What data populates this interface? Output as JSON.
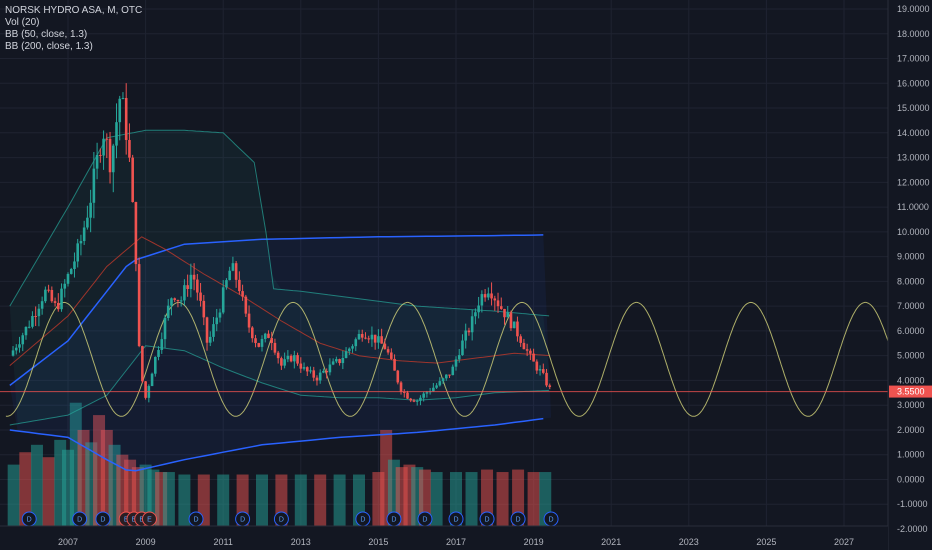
{
  "legend": {
    "symbol_line": "NORSK HYDRO ASA, M, OTC",
    "vol_line": "Vol (20)",
    "bb1_line": "BB (50, close, 1.3)",
    "bb2_line": "BB (200, close, 1.3)"
  },
  "chart_data": {
    "type": "candlestick",
    "symbol": "NORSK HYDRO ASA",
    "interval": "M",
    "exchange": "OTC",
    "current_price_label": "3.5500",
    "colors": {
      "background": "#131722",
      "up": "#26a69a",
      "down": "#ef5350",
      "bb50_mid": "#c0392b",
      "bb50_band": "#26a69a",
      "bb200_band": "#2962ff",
      "sine": "#d4d47a",
      "price_line": "#ef5350"
    },
    "y_axis": {
      "min": -2,
      "max": 19,
      "tick_labels": [
        "19.0000",
        "18.0000",
        "17.0000",
        "16.0000",
        "15.0000",
        "14.0000",
        "13.0000",
        "12.0000",
        "11.0000",
        "10.0000",
        "9.0000",
        "8.0000",
        "7.0000",
        "6.0000",
        "5.0000",
        "4.0000",
        "3.0000",
        "2.0000",
        "1.0000",
        "0.0000",
        "-1.0000",
        "-2.0000"
      ]
    },
    "x_axis": {
      "tick_labels": [
        "2007",
        "2009",
        "2011",
        "2013",
        "2015",
        "2017",
        "2019",
        "2021",
        "2023",
        "2025",
        "2027"
      ],
      "tick_years": [
        2007,
        2009,
        2011,
        2013,
        2015,
        2017,
        2019,
        2021,
        2023,
        2025,
        2027
      ]
    },
    "price_path": [
      [
        2005.5,
        5.0
      ],
      [
        2006.0,
        6.3
      ],
      [
        2006.4,
        7.6
      ],
      [
        2006.7,
        6.9
      ],
      [
        2007.0,
        8.2
      ],
      [
        2007.3,
        9.4
      ],
      [
        2007.6,
        11.5
      ],
      [
        2007.9,
        14.2
      ],
      [
        2008.1,
        12.8
      ],
      [
        2008.35,
        15.6
      ],
      [
        2008.55,
        13.6
      ],
      [
        2008.75,
        9.0
      ],
      [
        2008.85,
        4.5
      ],
      [
        2009.0,
        3.3
      ],
      [
        2009.15,
        4.3
      ],
      [
        2009.4,
        5.8
      ],
      [
        2009.7,
        7.6
      ],
      [
        2009.9,
        7.2
      ],
      [
        2010.2,
        8.4
      ],
      [
        2010.4,
        7.2
      ],
      [
        2010.6,
        5.4
      ],
      [
        2010.9,
        6.9
      ],
      [
        2011.2,
        8.6
      ],
      [
        2011.4,
        7.9
      ],
      [
        2011.6,
        6.4
      ],
      [
        2011.9,
        5.4
      ],
      [
        2012.2,
        5.9
      ],
      [
        2012.5,
        4.6
      ],
      [
        2012.8,
        5.0
      ],
      [
        2013.1,
        4.4
      ],
      [
        2013.4,
        4.1
      ],
      [
        2013.7,
        4.5
      ],
      [
        2014.0,
        4.8
      ],
      [
        2014.3,
        5.4
      ],
      [
        2014.6,
        6.0
      ],
      [
        2014.9,
        5.7
      ],
      [
        2015.2,
        5.3
      ],
      [
        2015.4,
        4.4
      ],
      [
        2015.6,
        3.6
      ],
      [
        2015.8,
        3.3
      ],
      [
        2016.0,
        3.2
      ],
      [
        2016.3,
        3.6
      ],
      [
        2016.6,
        3.9
      ],
      [
        2016.9,
        4.4
      ],
      [
        2017.1,
        5.3
      ],
      [
        2017.4,
        6.3
      ],
      [
        2017.6,
        7.3
      ],
      [
        2017.85,
        7.8
      ],
      [
        2018.1,
        7.1
      ],
      [
        2018.4,
        6.4
      ],
      [
        2018.7,
        5.6
      ],
      [
        2018.95,
        4.8
      ],
      [
        2019.2,
        4.3
      ],
      [
        2019.45,
        3.55
      ]
    ],
    "bb200": {
      "upper": [
        [
          2005.5,
          3.8
        ],
        [
          2007.0,
          5.6
        ],
        [
          2008.6,
          8.8
        ],
        [
          2010.0,
          9.5
        ],
        [
          2012.0,
          9.7
        ],
        [
          2015.0,
          9.8
        ],
        [
          2018.0,
          9.85
        ],
        [
          2019.45,
          9.88
        ]
      ],
      "lower": [
        [
          2005.5,
          2.0
        ],
        [
          2007.0,
          1.7
        ],
        [
          2008.0,
          0.8
        ],
        [
          2008.6,
          0.3
        ],
        [
          2010.0,
          0.8
        ],
        [
          2012.0,
          1.4
        ],
        [
          2014.0,
          1.7
        ],
        [
          2016.0,
          1.9
        ],
        [
          2018.0,
          2.2
        ],
        [
          2019.45,
          2.5
        ]
      ]
    },
    "bb50": {
      "upper": [
        [
          2005.5,
          7.0
        ],
        [
          2007.0,
          11.0
        ],
        [
          2008.0,
          13.8
        ],
        [
          2009.0,
          14.1
        ],
        [
          2010.0,
          14.1
        ],
        [
          2011.0,
          14.0
        ],
        [
          2011.8,
          12.8
        ],
        [
          2012.1,
          10.0
        ],
        [
          2012.3,
          7.7
        ],
        [
          2013.0,
          7.6
        ],
        [
          2014.0,
          7.4
        ],
        [
          2015.0,
          7.2
        ],
        [
          2016.0,
          7.0
        ],
        [
          2017.0,
          6.9
        ],
        [
          2018.0,
          6.8
        ],
        [
          2019.45,
          6.6
        ]
      ],
      "mid": [
        [
          2005.5,
          4.6
        ],
        [
          2007.0,
          6.6
        ],
        [
          2008.0,
          8.6
        ],
        [
          2008.9,
          9.8
        ],
        [
          2009.5,
          9.3
        ],
        [
          2010.5,
          8.3
        ],
        [
          2011.5,
          7.4
        ],
        [
          2012.5,
          6.4
        ],
        [
          2013.5,
          5.5
        ],
        [
          2014.5,
          5.0
        ],
        [
          2015.5,
          4.8
        ],
        [
          2016.5,
          4.7
        ],
        [
          2017.5,
          4.9
        ],
        [
          2018.5,
          5.1
        ],
        [
          2019.45,
          5.0
        ]
      ],
      "lower": [
        [
          2005.5,
          2.2
        ],
        [
          2007.0,
          2.6
        ],
        [
          2008.0,
          3.4
        ],
        [
          2009.0,
          5.4
        ],
        [
          2010.0,
          5.2
        ],
        [
          2011.0,
          4.5
        ],
        [
          2012.0,
          3.9
        ],
        [
          2013.0,
          3.4
        ],
        [
          2014.0,
          3.3
        ],
        [
          2015.0,
          3.3
        ],
        [
          2016.0,
          3.2
        ],
        [
          2017.0,
          3.3
        ],
        [
          2018.0,
          3.5
        ],
        [
          2019.45,
          3.6
        ]
      ]
    },
    "sine": {
      "mid": 4.85,
      "amplitude": 2.3,
      "period_years": 2.95,
      "peak_year": 2006.9,
      "from": 2005.4,
      "to": 2028.8
    },
    "volume": [
      [
        2005.6,
        0.6,
        "up"
      ],
      [
        2005.9,
        1.1,
        "down"
      ],
      [
        2006.2,
        1.4,
        "up"
      ],
      [
        2006.5,
        0.9,
        "down"
      ],
      [
        2006.8,
        1.6,
        "up"
      ],
      [
        2007.0,
        1.2,
        "up"
      ],
      [
        2007.2,
        3.1,
        "up"
      ],
      [
        2007.4,
        2.0,
        "down"
      ],
      [
        2007.6,
        1.5,
        "up"
      ],
      [
        2007.8,
        2.6,
        "down"
      ],
      [
        2008.0,
        2.0,
        "down"
      ],
      [
        2008.2,
        1.4,
        "up"
      ],
      [
        2008.4,
        1.0,
        "down"
      ],
      [
        2008.6,
        0.8,
        "down"
      ],
      [
        2008.8,
        0.5,
        "down"
      ],
      [
        2009.0,
        0.6,
        "up"
      ],
      [
        2009.2,
        0.4,
        "up"
      ],
      [
        2009.4,
        0.3,
        "down"
      ],
      [
        2009.6,
        0.3,
        "up"
      ],
      [
        2010.0,
        0.2,
        "up"
      ],
      [
        2010.5,
        0.2,
        "down"
      ],
      [
        2011.0,
        0.2,
        "up"
      ],
      [
        2011.5,
        0.2,
        "down"
      ],
      [
        2012.0,
        0.2,
        "up"
      ],
      [
        2012.5,
        0.2,
        "down"
      ],
      [
        2013.0,
        0.2,
        "up"
      ],
      [
        2013.5,
        0.2,
        "down"
      ],
      [
        2014.0,
        0.2,
        "up"
      ],
      [
        2014.5,
        0.2,
        "up"
      ],
      [
        2015.0,
        0.3,
        "down"
      ],
      [
        2015.2,
        2.0,
        "down"
      ],
      [
        2015.4,
        0.8,
        "up"
      ],
      [
        2015.6,
        0.5,
        "down"
      ],
      [
        2015.8,
        0.6,
        "down"
      ],
      [
        2016.0,
        0.5,
        "up"
      ],
      [
        2016.2,
        0.4,
        "down"
      ],
      [
        2016.5,
        0.3,
        "up"
      ],
      [
        2017.0,
        0.3,
        "up"
      ],
      [
        2017.4,
        0.3,
        "up"
      ],
      [
        2017.8,
        0.4,
        "down"
      ],
      [
        2018.2,
        0.3,
        "down"
      ],
      [
        2018.6,
        0.4,
        "down"
      ],
      [
        2019.0,
        0.3,
        "down"
      ],
      [
        2019.3,
        0.3,
        "up"
      ]
    ],
    "events": [
      [
        2006.0,
        "D"
      ],
      [
        2007.3,
        "D"
      ],
      [
        2007.9,
        "D"
      ],
      [
        2008.5,
        "E"
      ],
      [
        2008.7,
        "E"
      ],
      [
        2008.9,
        "E"
      ],
      [
        2009.1,
        "E"
      ],
      [
        2010.3,
        "D"
      ],
      [
        2011.5,
        "D"
      ],
      [
        2012.5,
        "D"
      ],
      [
        2014.6,
        "D"
      ],
      [
        2015.4,
        "D"
      ],
      [
        2016.2,
        "D"
      ],
      [
        2017.0,
        "D"
      ],
      [
        2017.8,
        "D"
      ],
      [
        2018.6,
        "D"
      ],
      [
        2019.45,
        "D"
      ]
    ]
  }
}
